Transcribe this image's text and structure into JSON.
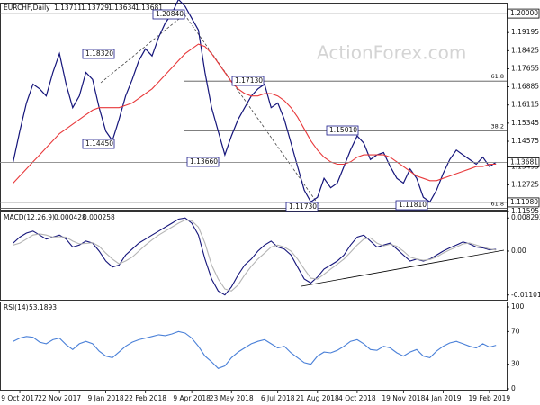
{
  "chart_data": [
    {
      "type": "line",
      "title": "EURCHF,Daily",
      "last_bar": [
        1.13711,
        1.13729,
        1.13634,
        1.13681
      ],
      "watermark": "ActionForex.com",
      "x": [
        0,
        1,
        2,
        3,
        4,
        5,
        6,
        7,
        8,
        9,
        10,
        11,
        12,
        13,
        14,
        15,
        16,
        17,
        18,
        19,
        20,
        21,
        22,
        23,
        24,
        25,
        26,
        27,
        28,
        29,
        30,
        31,
        32,
        33,
        34,
        35,
        36,
        37,
        38,
        39,
        40,
        41,
        42,
        43,
        44,
        45,
        46,
        47,
        48,
        49,
        50,
        51,
        52,
        53,
        54,
        55,
        56,
        57,
        58,
        59,
        60,
        61,
        62,
        63,
        64,
        65,
        66,
        67,
        68,
        69,
        70,
        71,
        72,
        73
      ],
      "xlim": [
        -2,
        74.6
      ],
      "series": [
        {
          "color": "#14147a",
          "values": [
            1.137,
            1.15,
            1.162,
            1.17,
            1.168,
            1.165,
            1.175,
            1.183,
            1.17,
            1.16,
            1.165,
            1.175,
            1.172,
            1.16,
            1.15,
            1.146,
            1.155,
            1.165,
            1.172,
            1.18,
            1.185,
            1.182,
            1.19,
            1.196,
            1.2,
            1.206,
            1.203,
            1.198,
            1.193,
            1.175,
            1.16,
            1.15,
            1.14,
            1.148,
            1.155,
            1.16,
            1.165,
            1.168,
            1.17,
            1.16,
            1.162,
            1.155,
            1.145,
            1.135,
            1.125,
            1.12,
            1.122,
            1.13,
            1.126,
            1.128,
            1.135,
            1.142,
            1.148,
            1.145,
            1.138,
            1.14,
            1.141,
            1.135,
            1.13,
            1.128,
            1.134,
            1.13,
            1.122,
            1.12,
            1.125,
            1.132,
            1.138,
            1.142,
            1.14,
            1.138,
            1.136,
            1.139,
            1.135,
            1.13681
          ]
        },
        {
          "color": "#e8393b",
          "values": [
            1.128,
            1.131,
            1.134,
            1.137,
            1.14,
            1.143,
            1.146,
            1.149,
            1.151,
            1.153,
            1.155,
            1.157,
            1.159,
            1.16,
            1.16,
            1.16,
            1.16,
            1.161,
            1.162,
            1.164,
            1.166,
            1.168,
            1.171,
            1.174,
            1.177,
            1.18,
            1.183,
            1.185,
            1.187,
            1.186,
            1.183,
            1.179,
            1.175,
            1.171,
            1.168,
            1.166,
            1.165,
            1.165,
            1.166,
            1.166,
            1.165,
            1.163,
            1.16,
            1.156,
            1.151,
            1.146,
            1.142,
            1.139,
            1.137,
            1.136,
            1.136,
            1.137,
            1.139,
            1.14,
            1.14,
            1.14,
            1.14,
            1.139,
            1.137,
            1.135,
            1.133,
            1.131,
            1.13,
            1.129,
            1.129,
            1.13,
            1.131,
            1.132,
            1.133,
            1.134,
            1.135,
            1.135,
            1.136,
            1.136
          ]
        }
      ],
      "ylim": [
        1.11671,
        1.20424
      ],
      "yticks": [
        1.19195,
        1.18425,
        1.17655,
        1.16885,
        1.16115,
        1.15345,
        1.14575,
        1.13495,
        1.12725,
        1.11595
      ],
      "levels": [
        {
          "value": 1.2,
          "label": "1.20000"
        },
        1.13681,
        {
          "value": 1.1198,
          "label": "1.11980"
        }
      ],
      "fib_levels": [
        {
          "ratio": 61.8,
          "value": 1.1713
        },
        {
          "ratio": 38.2,
          "value": 1.1501
        },
        {
          "ratio": 61.8,
          "value": 1.1173
        }
      ],
      "annotations": [
        "1.20840",
        "1.18320",
        "1.14450",
        "1.17130",
        "1.13660",
        "1.15010",
        "1.11730",
        "1.11810"
      ]
    },
    {
      "type": "line",
      "title": "MACD(12,26,9)",
      "series": [
        {
          "color": "#14147a",
          "values": [
            0.002,
            0.0035,
            0.0045,
            0.005,
            0.004,
            0.003,
            0.0035,
            0.004,
            0.003,
            0.001,
            0.0015,
            0.0025,
            0.002,
            0.0,
            -0.0025,
            -0.004,
            -0.0035,
            -0.001,
            0.0005,
            0.002,
            0.003,
            0.004,
            0.005,
            0.006,
            0.007,
            0.008,
            0.0083,
            0.007,
            0.004,
            -0.002,
            -0.007,
            -0.01,
            -0.011,
            -0.009,
            -0.006,
            -0.0035,
            -0.002,
            0.0,
            0.0015,
            0.0025,
            0.001,
            0.0005,
            -0.001,
            -0.004,
            -0.007,
            -0.008,
            -0.0065,
            -0.0045,
            -0.0035,
            -0.0025,
            -0.001,
            0.0015,
            0.0035,
            0.004,
            0.0025,
            0.001,
            0.0015,
            0.002,
            0.0005,
            -0.001,
            -0.0025,
            -0.002,
            -0.0025,
            -0.002,
            -0.001,
            0.0,
            0.0008,
            0.0015,
            0.0023,
            0.0018,
            0.001,
            0.0008,
            0.0003,
            0.000428
          ]
        },
        {
          "color": "#b4b4b4",
          "values": [
            0.0015,
            0.002,
            0.003,
            0.004,
            0.0043,
            0.004,
            0.0035,
            0.0036,
            0.0035,
            0.0025,
            0.0018,
            0.0019,
            0.0021,
            0.0012,
            -0.0005,
            -0.002,
            -0.0032,
            -0.0025,
            -0.0015,
            0.0,
            0.0015,
            0.0028,
            0.004,
            0.005,
            0.006,
            0.007,
            0.0078,
            0.0076,
            0.006,
            0.002,
            -0.0035,
            -0.007,
            -0.0095,
            -0.01,
            -0.0085,
            -0.006,
            -0.0038,
            -0.002,
            -0.0005,
            0.001,
            0.0015,
            0.001,
            0.0,
            -0.002,
            -0.0045,
            -0.0068,
            -0.007,
            -0.0058,
            -0.0045,
            -0.0033,
            -0.002,
            -0.0003,
            0.0015,
            0.003,
            0.0033,
            0.002,
            0.0013,
            0.0017,
            0.0012,
            0.0,
            -0.0015,
            -0.002,
            -0.0023,
            -0.0021,
            -0.0015,
            -0.0005,
            0.0003,
            0.001,
            0.0018,
            0.002,
            0.0015,
            0.001,
            0.0005,
            0.000258
          ]
        }
      ],
      "ylim": [
        -0.0122,
        0.0097
      ],
      "yticks": [
        0.008292,
        {
          "value": 0,
          "label": "0.00"
        },
        -0.011015
      ]
    },
    {
      "type": "line",
      "title": "RSI(14)",
      "series": [
        {
          "color": "#4a80d8",
          "values": [
            58,
            62,
            64,
            63,
            57,
            55,
            60,
            62,
            54,
            48,
            55,
            58,
            55,
            46,
            40,
            38,
            45,
            52,
            57,
            60,
            62,
            64,
            66,
            65,
            67,
            70,
            68,
            62,
            52,
            40,
            33,
            25,
            28,
            38,
            45,
            50,
            55,
            58,
            60,
            55,
            50,
            52,
            44,
            38,
            32,
            30,
            40,
            45,
            44,
            47,
            52,
            58,
            60,
            55,
            48,
            47,
            52,
            50,
            44,
            40,
            45,
            48,
            40,
            38,
            46,
            52,
            56,
            58,
            55,
            52,
            50,
            55,
            51,
            53.1893
          ]
        }
      ],
      "ylim": [
        0,
        100
      ],
      "yticks": [
        100,
        70,
        30,
        0
      ],
      "xticks": [
        {
          "value": 1,
          "label": "9 Oct 2017"
        },
        {
          "value": 7,
          "label": "22 Nov 2017"
        },
        {
          "value": 14,
          "label": "9 Jan 2018"
        },
        {
          "value": 20,
          "label": "22 Feb 2018"
        },
        {
          "value": 27,
          "label": "9 Apr 2018"
        },
        {
          "value": 33,
          "label": "23 May 2018"
        },
        {
          "value": 40,
          "label": "6 Jul 2018"
        },
        {
          "value": 46,
          "label": "21 Aug 2018"
        },
        {
          "value": 52,
          "label": "4 Oct 2018"
        },
        {
          "value": 59,
          "label": "19 Nov 2018"
        },
        {
          "value": 65,
          "label": "4 Jan 2019"
        },
        {
          "value": 72,
          "label": "19 Feb 2019"
        }
      ]
    }
  ]
}
